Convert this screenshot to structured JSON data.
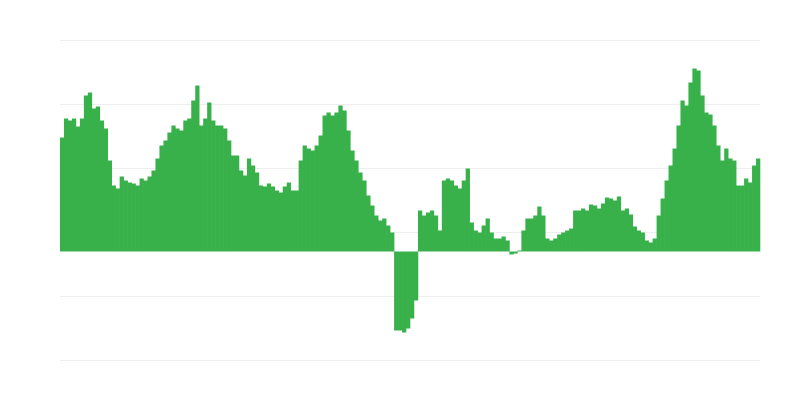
{
  "chart_data": {
    "type": "bar",
    "title": "",
    "xlabel": "",
    "ylabel": "",
    "grid": true,
    "legend": "none",
    "bar_color": "#39b14b",
    "grid_color": "#eeeeee",
    "values": [
      114,
      133,
      131,
      133,
      125,
      133,
      156,
      159,
      143,
      145,
      131,
      123,
      91,
      66,
      63,
      75,
      71,
      69,
      68,
      66,
      73,
      71,
      75,
      81,
      93,
      106,
      111,
      119,
      126,
      123,
      121,
      131,
      133,
      151,
      166,
      126,
      133,
      149,
      131,
      126,
      126,
      123,
      111,
      96,
      96,
      81,
      76,
      93,
      86,
      79,
      66,
      65,
      68,
      65,
      61,
      59,
      65,
      69,
      61,
      61,
      91,
      106,
      103,
      101,
      106,
      116,
      136,
      139,
      136,
      139,
      146,
      141,
      121,
      101,
      91,
      79,
      71,
      56,
      46,
      36,
      31,
      33,
      26,
      19,
      -79,
      -79,
      -81,
      -77,
      -67,
      -49,
      41,
      36,
      39,
      41,
      36,
      21,
      71,
      73,
      71,
      66,
      63,
      71,
      83,
      29,
      21,
      19,
      26,
      33,
      19,
      13,
      13,
      15,
      11,
      -3,
      -2,
      1,
      21,
      33,
      33,
      36,
      45,
      36,
      13,
      11,
      13,
      17,
      19,
      21,
      23,
      41,
      41,
      43,
      41,
      47,
      46,
      43,
      48,
      54,
      53,
      51,
      55,
      41,
      43,
      37,
      25,
      21,
      19,
      11,
      9,
      13,
      36,
      53,
      71,
      86,
      103,
      126,
      151,
      146,
      169,
      183,
      181,
      156,
      139,
      137,
      126,
      106,
      91,
      103,
      93,
      91,
      66,
      66,
      73,
      69,
      86,
      93
    ]
  }
}
